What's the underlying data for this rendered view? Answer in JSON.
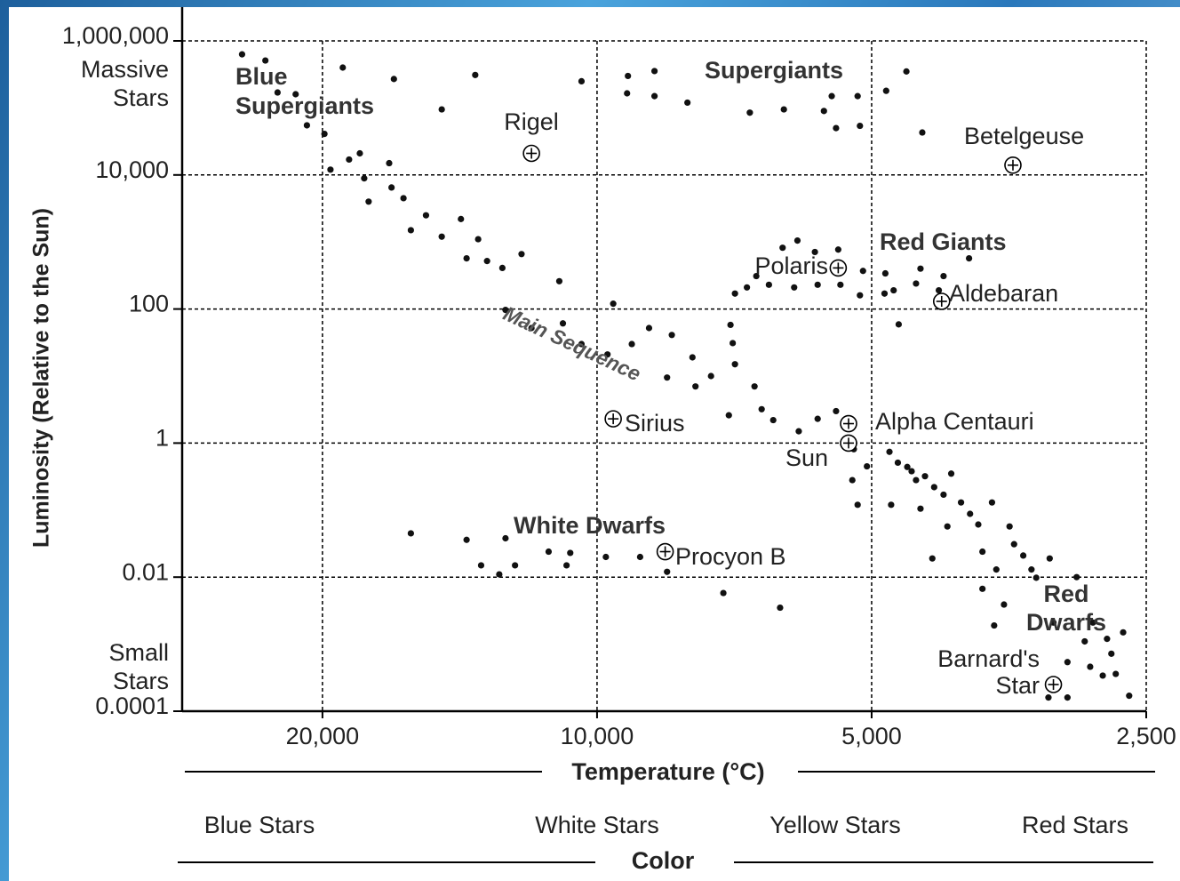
{
  "chart_data": {
    "type": "scatter",
    "x_label": "Temperature (°C)",
    "y_label": "Luminosity (Relative to the Sun)",
    "xscale": "log",
    "yscale": "log",
    "xlim": [
      28500,
      2500
    ],
    "ylim": [
      0.0001,
      1000000
    ],
    "xticks": [
      {
        "value": 20000,
        "label": "20,000"
      },
      {
        "value": 10000,
        "label": "10,000"
      },
      {
        "value": 5000,
        "label": "5,000"
      },
      {
        "value": 2500,
        "label": "2,500"
      }
    ],
    "yticks": [
      0.0001,
      0.01,
      1,
      100,
      {
        "value": 10000,
        "label": "10,000"
      },
      {
        "value": 1000000,
        "label": "1,000,000"
      }
    ],
    "grid": true,
    "y_axis_annotations": [
      "Massive Stars",
      "Small Stars"
    ],
    "series": [
      {
        "color": "#111111",
        "x": [
          24500,
          23100,
          22400,
          21400,
          20800,
          19000,
          16700,
          14800,
          13600,
          10400,
          9250,
          8650,
          9270,
          8650,
          7960,
          6800,
          6240,
          5640,
          5530,
          5180,
          5470,
          5150,
          4820,
          4580,
          4400,
          19900,
          19600,
          18700,
          18200,
          18000,
          16900,
          17800,
          16800,
          16300,
          16000,
          15400,
          14800,
          14100,
          13900,
          13500,
          13200,
          12700,
          12100,
          12600,
          11800,
          11000,
          10900,
          10400,
          9740,
          9600,
          9160,
          8770,
          8280,
          8380,
          7860,
          7800,
          7500,
          7060,
          7170,
          6720,
          6600,
          6410,
          6010,
          5730,
          5470,
          5230,
          5060,
          5250,
          4780,
          4570,
          4470,
          4270,
          4090,
          3990,
          3820,
          3690,
          4420,
          4290,
          4130,
          3780,
          3650,
          3530,
          3410,
          3300,
          3190,
          3780,
          3580,
          3670,
          3160,
          2980,
          2920,
          2860,
          2760,
          2650,
          2730,
          2700,
          2610,
          2790,
          2880,
          3050,
          3050,
          3200,
          5180,
          4760,
          3490,
          3340,
          3900,
          4170,
          4520,
          4370,
          4680,
          7100,
          7140,
          7060,
          6850,
          6690,
          6480,
          6260,
          6030,
          6080,
          5770,
          5440,
          5730,
          5410,
          5110,
          5150,
          4830,
          4840,
          4730,
          4420,
          4470,
          4220,
          4170,
          3910,
          4670,
          16000,
          13900,
          13400,
          12800,
          12600,
          12300,
          11300,
          10800,
          10700,
          9780,
          8970,
          8380,
          7270,
          6300
        ],
        "y": [
          630000,
          510000,
          170000,
          160000,
          55000,
          400000,
          270000,
          95000,
          310000,
          250000,
          300000,
          355000,
          165000,
          150000,
          120000,
          85000,
          95000,
          90000,
          150000,
          150000,
          50000,
          54000,
          180000,
          350000,
          43000,
          41000,
          12000,
          17000,
          21000,
          8900,
          15000,
          4000,
          6500,
          4500,
          1500,
          2500,
          1200,
          2200,
          570,
          1100,
          520,
          410,
          660,
          97,
          52,
          260,
          61,
          30,
          21,
          120,
          30,
          52,
          41,
          9.5,
          19,
          7,
          10,
          15,
          2.6,
          7,
          3.2,
          2.2,
          1.5,
          2.3,
          3,
          0.81,
          0.45,
          0.28,
          0.74,
          0.44,
          0.28,
          0.22,
          0.35,
          0.13,
          0.061,
          0.13,
          0.105,
          0.019,
          0.057,
          0.024,
          0.013,
          0.057,
          0.021,
          0.0098,
          0.019,
          0.0067,
          0.0039,
          0.0019,
          0.0021,
          0.01,
          0.0011,
          0.0021,
          0.0012,
          0.0015,
          0.00072,
          0.00036,
          0.00017,
          0.00034,
          0.00046,
          0.00054,
          0.00016,
          0.00016,
          0.12,
          0.12,
          0.031,
          0.013,
          0.088,
          0.17,
          0.38,
          0.32,
          0.51,
          31,
          58,
          170,
          210,
          310,
          230,
          820,
          1050,
          210,
          710,
          770,
          230,
          230,
          370,
          160,
          340,
          170,
          190,
          400,
          240,
          190,
          310,
          570,
          59,
          0.045,
          0.036,
          0.015,
          0.011,
          0.038,
          0.015,
          0.024,
          0.015,
          0.023,
          0.02,
          0.02,
          0.012,
          0.0058,
          0.0035
        ]
      }
    ],
    "named_stars": {
      "names": [
        "Rigel",
        "Betelgeuse",
        "Polaris",
        "Aldebaran",
        "Sirius",
        "Alpha Centauri",
        "Sun",
        "Procyon B",
        "Barnard's Star"
      ],
      "x": [
        11800,
        3500,
        5440,
        4190,
        9600,
        5300,
        5300,
        8420,
        3160
      ],
      "y": [
        21000,
        14000,
        410,
        130,
        2.3,
        1.95,
        1,
        0.024,
        0.00025
      ]
    },
    "annotations": [
      "Blue Supergiants",
      "Supergiants",
      "Red Giants",
      "Main Sequence",
      "White Dwarfs",
      "Red Dwarfs"
    ],
    "color_scale": {
      "title": "Color",
      "labels": [
        "Blue Stars",
        "White Stars",
        "Yellow Stars",
        "Red Stars"
      ]
    }
  }
}
